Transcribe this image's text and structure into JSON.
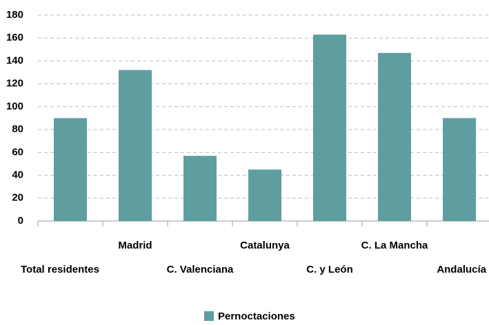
{
  "chart_data": {
    "type": "bar",
    "categories": [
      "Total  residentes",
      "Madrid",
      "C. Valenciana",
      "Catalunya",
      "C. y León",
      "C. La Mancha",
      "Andalucía"
    ],
    "series": [
      {
        "name": "Pernoctaciones",
        "color": "#5f9ea0",
        "values": [
          90,
          132,
          57,
          45,
          163,
          147,
          90
        ]
      }
    ],
    "ylim": [
      0,
      180
    ],
    "yticks": [
      0,
      20,
      40,
      60,
      80,
      100,
      120,
      140,
      160,
      180
    ],
    "grid": true,
    "legend": "bottom"
  }
}
